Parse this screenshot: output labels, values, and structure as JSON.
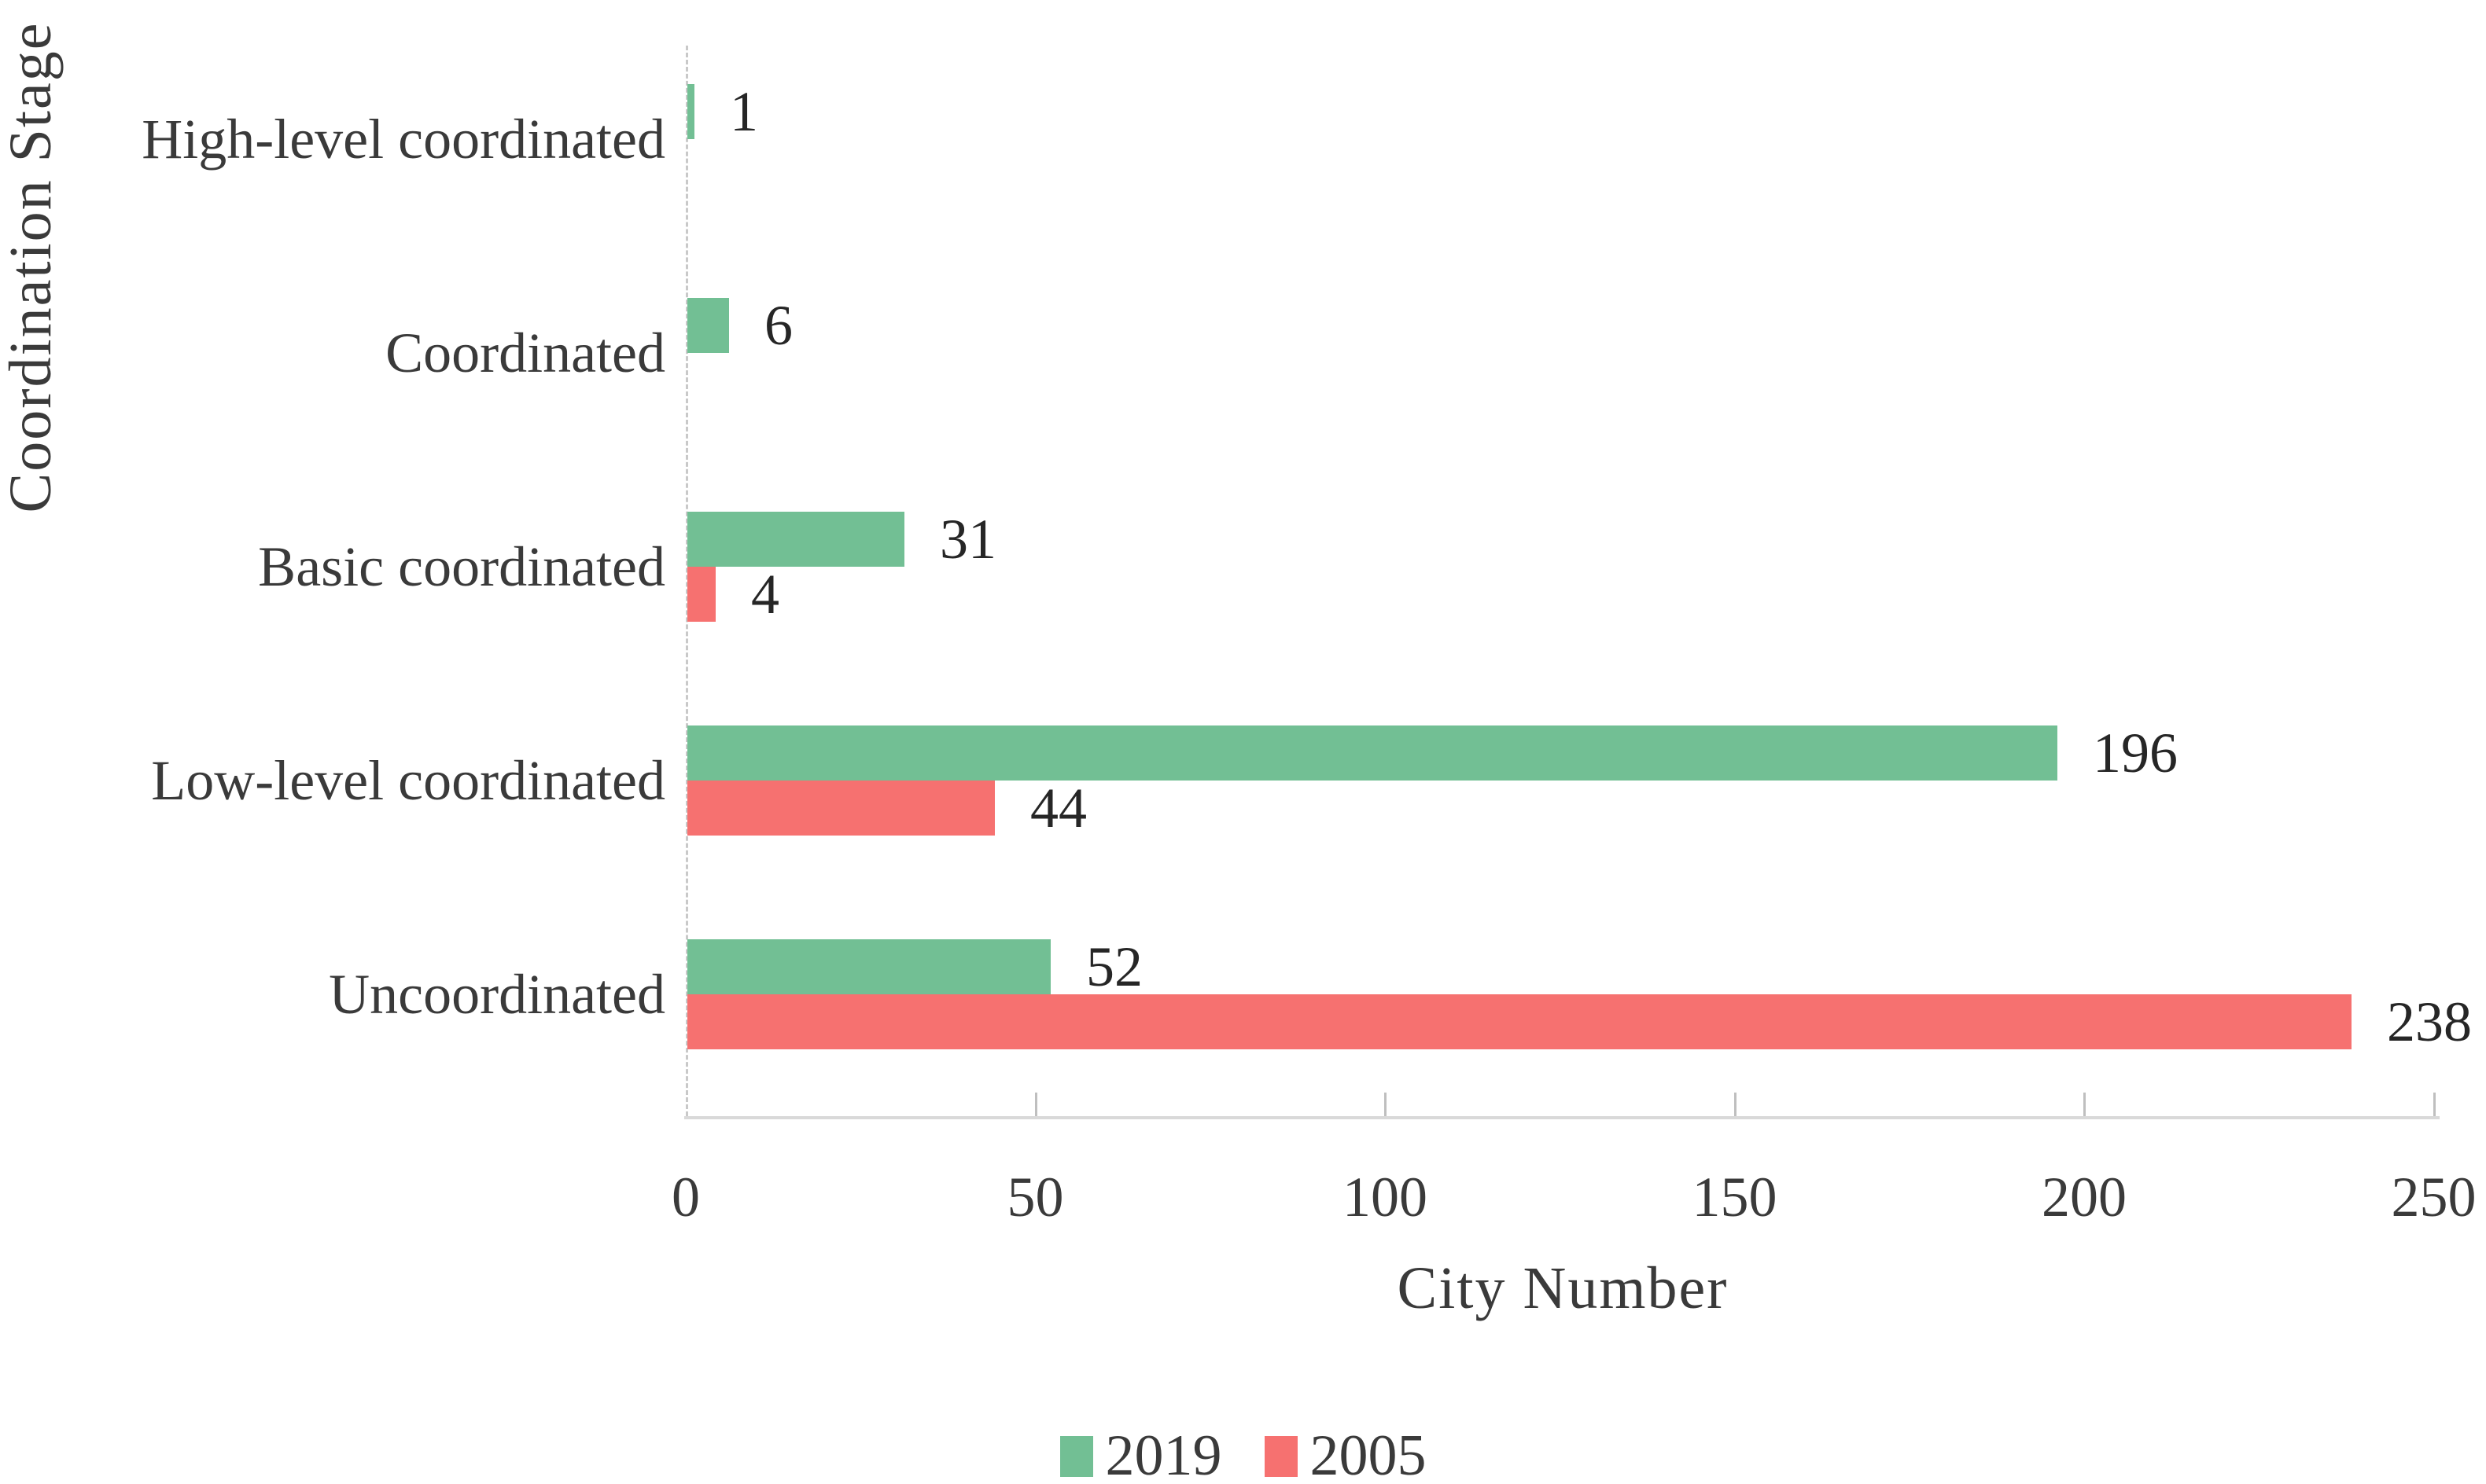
{
  "chart_data": {
    "type": "bar",
    "orientation": "horizontal",
    "title": "",
    "xlabel": "City Number",
    "ylabel": "Coordination Stage",
    "xlim": [
      0,
      250
    ],
    "xticks": [
      0,
      50,
      100,
      150,
      200,
      250
    ],
    "grid": false,
    "legend_position": "bottom-center",
    "value_labels_shown": true,
    "categories_top_to_bottom": [
      "High-level coordinated",
      "Coordinated",
      "Basic coordinated",
      "Low-level coordinated",
      "Uncoordinated"
    ],
    "series": [
      {
        "name": "2019",
        "color": "#72BF94",
        "values": [
          1,
          6,
          31,
          196,
          52
        ]
      },
      {
        "name": "2005",
        "color": "#F67170",
        "values": [
          0,
          0,
          4,
          44,
          238
        ]
      }
    ]
  },
  "colors": {
    "background": "#ffffff",
    "axis_line": "#d9d9d9",
    "tick_mark": "#bfbfbf",
    "text": "#3a3a3a",
    "value_text": "#262626"
  }
}
